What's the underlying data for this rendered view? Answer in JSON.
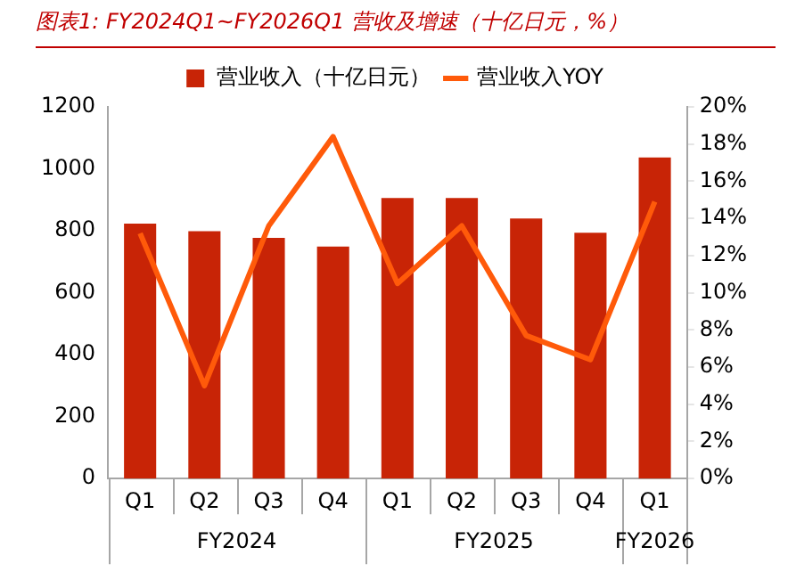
{
  "chart_data": {
    "type": "bar",
    "title": "图表1: FY2024Q1~FY2026Q1 营收及增速（十亿日元，%）",
    "categories": [
      "Q1",
      "Q2",
      "Q3",
      "Q4",
      "Q1",
      "Q2",
      "Q3",
      "Q4",
      "Q1"
    ],
    "annotations": [
      "FY2024",
      "FY2025",
      "FY2026"
    ],
    "series": [
      {
        "name": "营业收入（十亿日元）",
        "color": "#c82406",
        "values": [
          823,
          799,
          777,
          749,
          906,
          906,
          840,
          794,
          1037
        ]
      },
      {
        "name": "营业收入YOY",
        "type": "line",
        "axis": "y2",
        "color": "#ff5a0a",
        "values": [
          13.2,
          5.0,
          13.6,
          18.4,
          10.5,
          13.6,
          7.7,
          6.4,
          14.9
        ]
      }
    ],
    "ylim": [
      0,
      1200
    ],
    "yticks": [
      0,
      200,
      400,
      600,
      800,
      1000,
      1200
    ],
    "y2lim": [
      0,
      20
    ],
    "y2ticks": [
      {
        "value": 0,
        "label": "0%"
      },
      {
        "value": 2,
        "label": "2%"
      },
      {
        "value": 4,
        "label": "4%"
      },
      {
        "value": 6,
        "label": "6%"
      },
      {
        "value": 8,
        "label": "8%"
      },
      {
        "value": 10,
        "label": "10%"
      },
      {
        "value": 12,
        "label": "12%"
      },
      {
        "value": 14,
        "label": "14%"
      },
      {
        "value": 16,
        "label": "16%"
      },
      {
        "value": 18,
        "label": "18%"
      },
      {
        "value": 20,
        "label": "20%"
      }
    ],
    "legend": "top",
    "grid": false,
    "marker": "none"
  }
}
